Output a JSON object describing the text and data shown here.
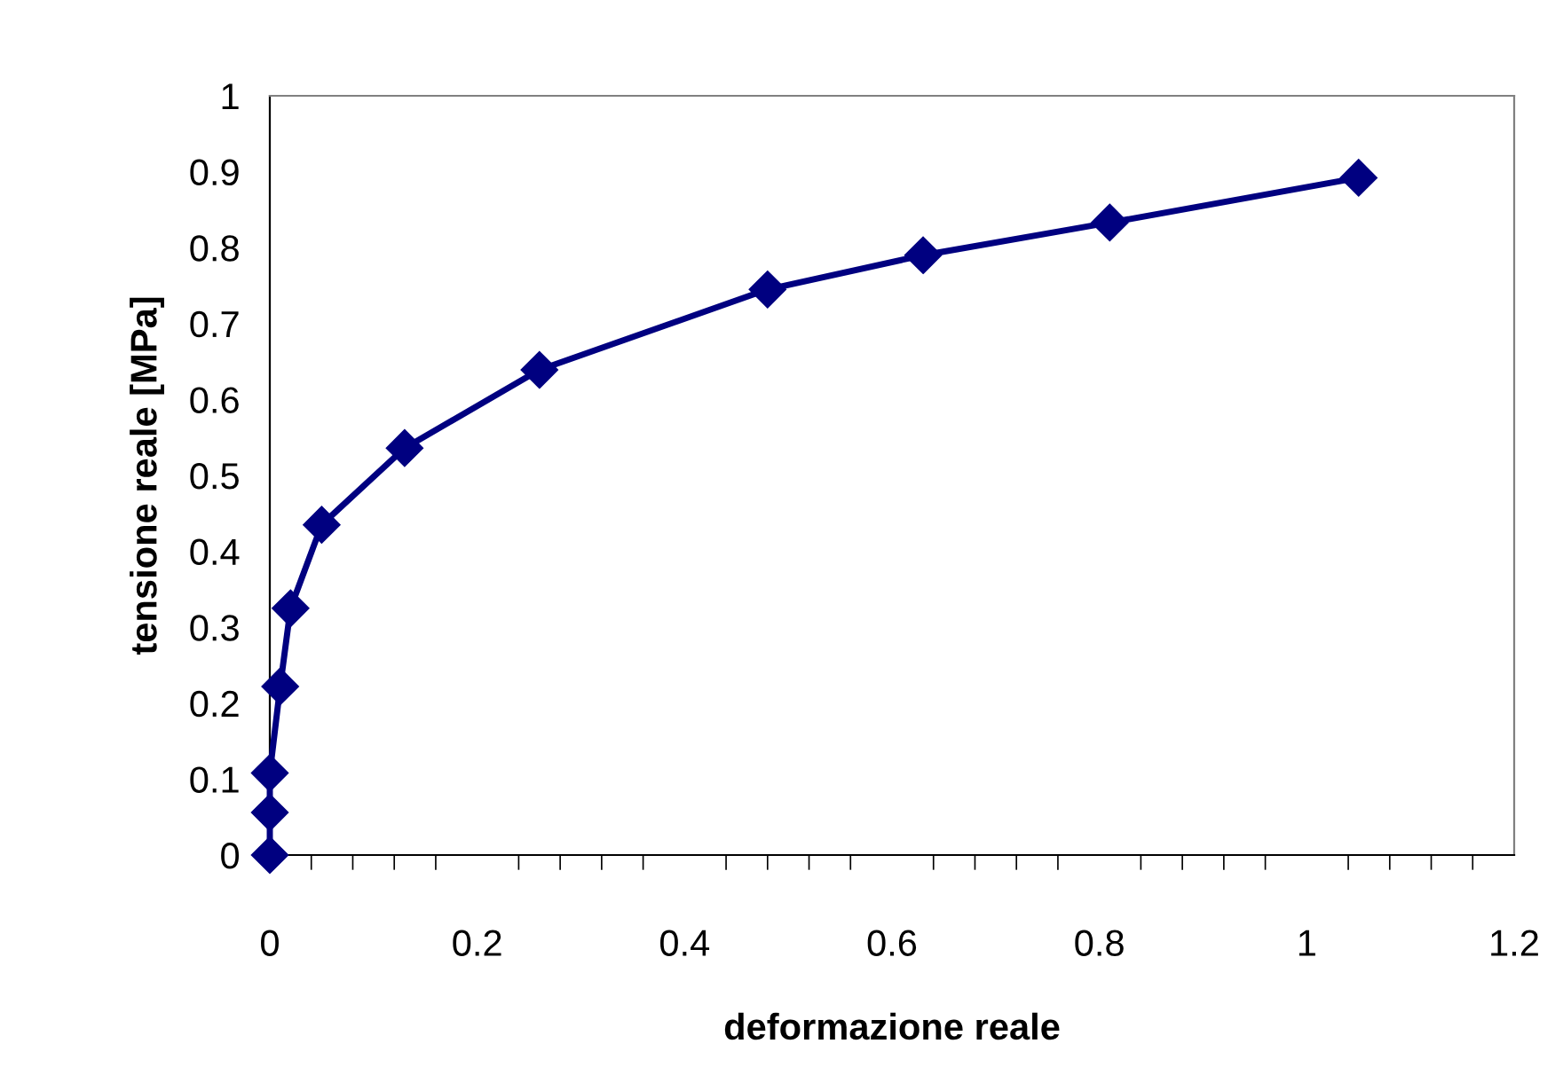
{
  "chart_data": {
    "type": "line",
    "xlabel": "deformazione reale",
    "ylabel": "tensione reale [MPa]",
    "x": [
      0,
      0,
      0,
      0.01,
      0.02,
      0.05,
      0.13,
      0.26,
      0.48,
      0.63,
      0.81,
      1.05
    ],
    "series": [
      {
        "color": "#000080",
        "values": [
          0,
          0.056,
          0.108,
          0.222,
          0.325,
          0.435,
          0.536,
          0.639,
          0.745,
          0.79,
          0.833,
          0.892
        ]
      }
    ],
    "xlim": [
      0,
      1.2
    ],
    "xticks": [
      0,
      0.2,
      0.4,
      0.6,
      0.8,
      1,
      1.2
    ],
    "ylim": [
      0,
      1
    ],
    "yticks": [
      0,
      0.1,
      0.2,
      0.3,
      0.4,
      0.5,
      0.6,
      0.7,
      0.8,
      0.9,
      1
    ],
    "marker": "diamond",
    "line_style": "solid",
    "grid": false,
    "legend": false
  }
}
